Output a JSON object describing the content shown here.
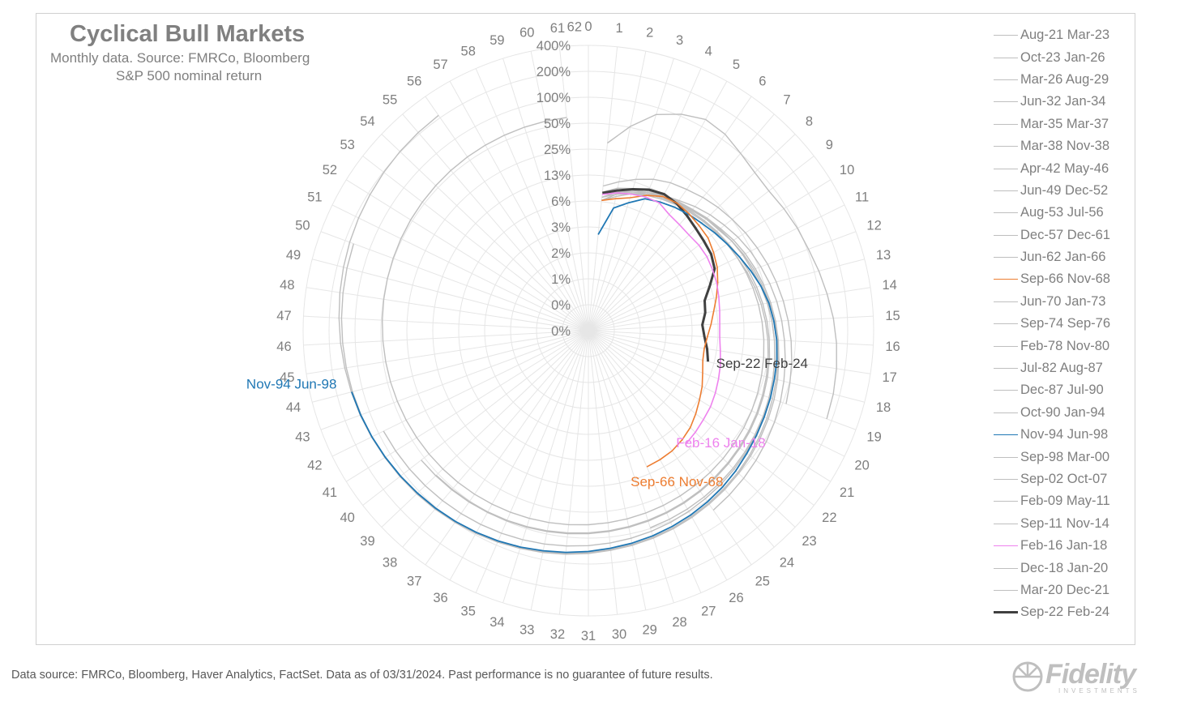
{
  "title": "Cyclical Bull Markets",
  "subtitle": "Monthly data.  Source: FMRCo, Bloomberg",
  "subtitle2": "S&P 500 nominal return",
  "footer": "Data source: FMRCo, Bloomberg, Haver Analytics, FactSet. Data as of 03/31/2024. Past performance is no guarantee of future results.",
  "logo": {
    "name": "Fidelity",
    "sub": "INVESTMENTS"
  },
  "colors": {
    "grid": "#e6e6e6",
    "gray": "#bfbfbf",
    "orange": "#ed7d31",
    "pink": "#ee82ee",
    "blue": "#1f77b4",
    "dark": "#404040",
    "text": "#7f7f7f"
  },
  "chart_data": {
    "type": "polar-line",
    "radial_axis_ticks": [
      "0%",
      "0%",
      "1%",
      "2%",
      "3%",
      "6%",
      "13%",
      "25%",
      "50%",
      "100%",
      "200%",
      "400%"
    ],
    "angular_axis": {
      "min": 0,
      "max": 62,
      "label": ""
    },
    "angular_ticks": [
      0,
      1,
      2,
      3,
      4,
      5,
      6,
      7,
      8,
      9,
      10,
      11,
      12,
      13,
      14,
      15,
      16,
      17,
      18,
      19,
      20,
      21,
      22,
      23,
      24,
      25,
      26,
      27,
      28,
      29,
      30,
      31,
      32,
      33,
      34,
      35,
      36,
      37,
      38,
      39,
      40,
      41,
      42,
      43,
      44,
      45,
      46,
      47,
      48,
      49,
      50,
      51,
      52,
      53,
      54,
      55,
      56,
      57,
      58,
      59,
      60,
      61,
      62
    ],
    "legend": [
      "Aug-21 Mar-23",
      "Oct-23 Jan-26",
      "Mar-26 Aug-29",
      "Jun-32 Jan-34",
      "Mar-35 Mar-37",
      "Mar-38 Nov-38",
      "Apr-42 May-46",
      "Jun-49 Dec-52",
      "Aug-53 Jul-56",
      "Dec-57 Dec-61",
      "Jun-62 Jan-66",
      "Sep-66 Nov-68",
      "Jun-70 Jan-73",
      "Sep-74 Sep-76",
      "Feb-78 Nov-80",
      "Jul-82 Aug-87",
      "Dec-87 Jul-90",
      "Oct-90 Jan-94",
      "Nov-94 Jun-98",
      "Sep-98 Mar-00",
      "Sep-02 Oct-07",
      "Feb-09 May-11",
      "Sep-11 Nov-14",
      "Feb-16 Jan-18",
      "Dec-18 Jan-20",
      "Mar-20 Dec-21",
      "Sep-22 Feb-24"
    ],
    "series": [
      {
        "name": "Sep-22 Feb-24",
        "color": "dark",
        "width": 3,
        "values": [
          6.3,
          7.4,
          8.8,
          10.5,
          11.5,
          11.0,
          9.8,
          8.8,
          8.2,
          7.8,
          6.8,
          4.8,
          3.6,
          3.4,
          3.0,
          3.2,
          3.6,
          4.0
        ]
      },
      {
        "name": "Nov-94 Jun-98",
        "color": "blue",
        "width": 1.8,
        "values": [
          2.2,
          4.2,
          5.5,
          7.5,
          8.5,
          9.5,
          10.5,
          11.5,
          13.0,
          14.5,
          16.5,
          19.0,
          22.0,
          25.0,
          27.5,
          30.0,
          32.0,
          33.5,
          35.5,
          37.5,
          40.0,
          43.0,
          47.0,
          51.0,
          55.0,
          59.0,
          63.0,
          67.0,
          71.0,
          75.0,
          80.0,
          85.0,
          90.0,
          96.0,
          102.0,
          108.0,
          114.0,
          120.0,
          126.0,
          133.0,
          140.0,
          148.0,
          156.0,
          164.0
        ]
      },
      {
        "name": "Sep-66 Nov-68",
        "color": "orange",
        "width": 1.6,
        "values": [
          5.0,
          5.6,
          6.5,
          8.5,
          10.5,
          11.2,
          10.8,
          10.2,
          9.8,
          8.6,
          7.5,
          6.2,
          5.2,
          4.4,
          3.9,
          3.5,
          3.3,
          3.4,
          3.8,
          4.4,
          5.0,
          5.8,
          6.8,
          7.6,
          8.3,
          8.6,
          8.8
        ]
      },
      {
        "name": "Feb-16 Jan-18",
        "color": "pink",
        "width": 1.6,
        "values": [
          6.0,
          6.8,
          7.4,
          8.0,
          8.2,
          7.0,
          6.6,
          6.4,
          6.6,
          6.6,
          6.3,
          6.0,
          5.6,
          5.3,
          5.1,
          5.1,
          5.4,
          5.9,
          6.4,
          7.0,
          7.6,
          8.0,
          8.6,
          9.2
        ]
      },
      {
        "name": "Aug-21 Mar-23",
        "color": "gray",
        "width": 1.4,
        "values": [
          8.0,
          10.0,
          12.5,
          15.0,
          17.0,
          18.5,
          20.5,
          22.5,
          24.5,
          27.0,
          29.5,
          32.5,
          35.5,
          39.0,
          42.5,
          46.5,
          50.5,
          54.5,
          59.0
        ]
      },
      {
        "name": "Oct-23 Jan-26",
        "color": "gray",
        "width": 1.4,
        "values": [
          6.5,
          8.0,
          9.0,
          10.0,
          11.0,
          12.0,
          13.0,
          14.0,
          15.5,
          17.0,
          18.5,
          20.0,
          22.0,
          24.0,
          26.0,
          28.0,
          30.0,
          32.0,
          34.0,
          36.0,
          38.0,
          40.0,
          42.0,
          44.0,
          46.0,
          48.0,
          50.0,
          52.0
        ]
      },
      {
        "name": "Mar-26 Aug-29",
        "color": "gray",
        "width": 1.4,
        "values": [
          5.0,
          6.5,
          7.5,
          9.0,
          10.0,
          11.0,
          12.5,
          14.0,
          15.0,
          17.0,
          19.0,
          21.0,
          23.0,
          25.5,
          28.0,
          30.5,
          33.0,
          35.5,
          38.0,
          41.0,
          44.0,
          47.5,
          51.0,
          54.5,
          58.0,
          62.0,
          66.0,
          70.0,
          74.0,
          78.0,
          83.0,
          88.0,
          93.0,
          98.0,
          104.0,
          110.0,
          116.0,
          122.0,
          128.0,
          135.0,
          142.0,
          150.0,
          158.0,
          166.0,
          174.0,
          183.0,
          192.0,
          202.0,
          212.0,
          222.0,
          232.0,
          242.0,
          252.0,
          262.0,
          272.0,
          282.0
        ]
      },
      {
        "name": "Jun-32 Jan-34",
        "color": "gray",
        "width": 1.4,
        "values": [
          30.0,
          55.0,
          95.0,
          125.0,
          150.0,
          140.0,
          118.0,
          104.0,
          100.0,
          107.0,
          115.0,
          122.0,
          135.0,
          150.0,
          168.0,
          185.0,
          200.0,
          212.0,
          220.0
        ]
      },
      {
        "name": "Mar-35 Mar-37",
        "color": "gray",
        "width": 1.4,
        "values": [
          5.0,
          6.5,
          8.0,
          9.5,
          11.0,
          12.5,
          14.5,
          16.5,
          18.5,
          21.0,
          23.5,
          26.0,
          29.0,
          32.0,
          35.0,
          38.0,
          41.5,
          45.0,
          49.0,
          53.0,
          57.0,
          61.0,
          65.5,
          70.0,
          75.0
        ]
      },
      {
        "name": "Apr-42 May-46",
        "color": "gray",
        "width": 1.4,
        "values": [
          6.0,
          7.0,
          8.0,
          9.0,
          10.0,
          11.5,
          13.0,
          14.5,
          16.0,
          18.0,
          20.0,
          22.0,
          24.0,
          26.5,
          29.0,
          31.5,
          34.0,
          37.0,
          40.0,
          43.0,
          46.0,
          49.5,
          53.0,
          56.5,
          60.0,
          64.0,
          68.0,
          72.0,
          76.0,
          80.0,
          85.0,
          90.0,
          95.0,
          100.0,
          106.0,
          112.0,
          118.0,
          124.0,
          130.0,
          136.0,
          142.0,
          148.0,
          154.0,
          160.0,
          166.0,
          172.0,
          178.0,
          184.0,
          190.0,
          196.0
        ]
      },
      {
        "name": "Jun-49 Dec-52",
        "color": "gray",
        "width": 1.4,
        "values": [
          6.0,
          7.0,
          8.5,
          9.5,
          10.5,
          11.5,
          12.5,
          14.0,
          15.5,
          17.0,
          18.5,
          20.0,
          22.0,
          24.0,
          26.0,
          28.0,
          30.0,
          32.0,
          34.0,
          36.5,
          39.0,
          41.5,
          44.0,
          46.5,
          49.0,
          52.0,
          55.0,
          58.0,
          61.0,
          64.0,
          67.0,
          70.0,
          73.0,
          76.0,
          79.0,
          82.0,
          85.0,
          88.0,
          91.0,
          94.0,
          97.0,
          100.0
        ]
      },
      {
        "name": "Oct-90 Jan-94",
        "color": "gray",
        "width": 1.4,
        "values": [
          5.0,
          6.0,
          7.5,
          9.0,
          10.0,
          11.0,
          12.0,
          13.0,
          14.0,
          15.0,
          16.5,
          18.0,
          19.5,
          21.0,
          22.5,
          24.0,
          25.5,
          27.0,
          28.5,
          30.0,
          31.5,
          33.0,
          34.5,
          36.0,
          37.5,
          39.0,
          40.5,
          42.0,
          43.5,
          45.0,
          46.5,
          48.0,
          49.5,
          51.0,
          52.5,
          54.0,
          55.5,
          57.0,
          58.5,
          60.0
        ]
      },
      {
        "name": "Sep-02 Oct-07",
        "color": "gray",
        "width": 1.4,
        "values": [
          5.5,
          6.5,
          7.5,
          8.5,
          9.5,
          10.5,
          11.5,
          12.5,
          13.5,
          14.5,
          15.5,
          16.5,
          17.5,
          18.5,
          19.5,
          20.5,
          21.5,
          22.5,
          23.5,
          24.5,
          25.5,
          26.5,
          27.5,
          28.5,
          29.5,
          30.5,
          31.5,
          32.5,
          33.5,
          34.5,
          35.5,
          36.5,
          37.5,
          38.5,
          39.5,
          40.5,
          41.5,
          42.5,
          43.5,
          44.5,
          45.5,
          46.5,
          47.5,
          48.5,
          49.5,
          50.5,
          51.5,
          52.5,
          53.5,
          54.5,
          55.5,
          56.5,
          57.5,
          58.5,
          59.5,
          60.5,
          61.5,
          62.5,
          63.5,
          64.5,
          65.5
        ]
      },
      {
        "name": "Sep-11 Nov-14",
        "color": "gray",
        "width": 1.4,
        "values": [
          5.5,
          7.0,
          8.5,
          9.5,
          10.0,
          10.5,
          11.5,
          12.5,
          13.5,
          14.5,
          15.5,
          17.0,
          18.5,
          20.0,
          21.5,
          23.0,
          24.5,
          26.0,
          27.5,
          29.0,
          30.5,
          32.0,
          33.5,
          35.0,
          36.5,
          38.0,
          39.5,
          41.0,
          42.5,
          44.0,
          45.5,
          47.0,
          48.5,
          50.0,
          51.5,
          53.0,
          54.5,
          56.0,
          57.5
        ]
      }
    ],
    "annotations": [
      "Sep-22 Feb-24",
      "Nov-94 Jun-98",
      "Sep-66 Nov-68",
      "Feb-16 Jan-18"
    ]
  }
}
